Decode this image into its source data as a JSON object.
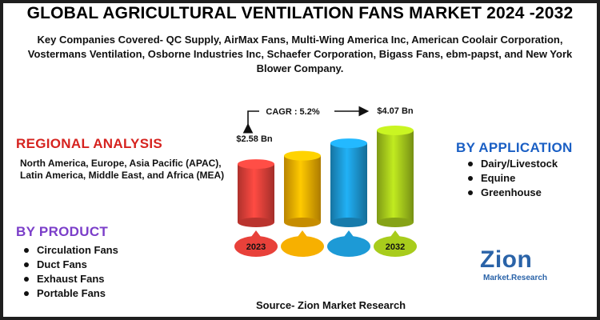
{
  "header": {
    "title": "GLOBAL AGRICULTURAL VENTILATION FANS MARKET 2024 -2032",
    "key_companies": "Key Companies Covered- QC Supply, AirMax Fans, Multi-Wing America Inc, American Coolair Corporation, Vostermans Ventilation, Osborne Industries Inc, Schaefer Corporation, Bigass Fans, ebm-papst, and New York Blower Company."
  },
  "regional": {
    "heading": "REGIONAL  ANALYSIS",
    "text": "North America, Europe, Asia Pacific (APAC), Latin America, Middle East, and Africa (MEA)"
  },
  "product": {
    "heading": "BY PRODUCT",
    "items": [
      "Circulation Fans",
      "Duct Fans",
      "Exhaust Fans",
      "Portable Fans"
    ]
  },
  "application": {
    "heading": "BY APPLICATION",
    "items": [
      "Dairy/Livestock",
      "Equine",
      "Greenhouse"
    ]
  },
  "source": "Source- Zion Market Research",
  "logo": {
    "word": "Zion",
    "sub": "Market.Research"
  },
  "colors": {
    "regional": "#d6231f",
    "product": "#7b3ec9",
    "application": "#1a5fc4"
  },
  "chart_data": {
    "type": "bar",
    "categories": [
      "2023",
      "",
      "",
      "2032"
    ],
    "values": [
      2.58,
      2.95,
      3.5,
      4.07
    ],
    "value_labels": [
      "$2.58 Bn",
      "",
      "",
      "$4.07 Bn"
    ],
    "cagr_label": "CAGR : 5.2%",
    "bar_colors": [
      "#e8413a",
      "#f7b000",
      "#1d9ad6",
      "#a8cc1c"
    ],
    "title": "",
    "xlabel": "",
    "ylabel": ""
  }
}
